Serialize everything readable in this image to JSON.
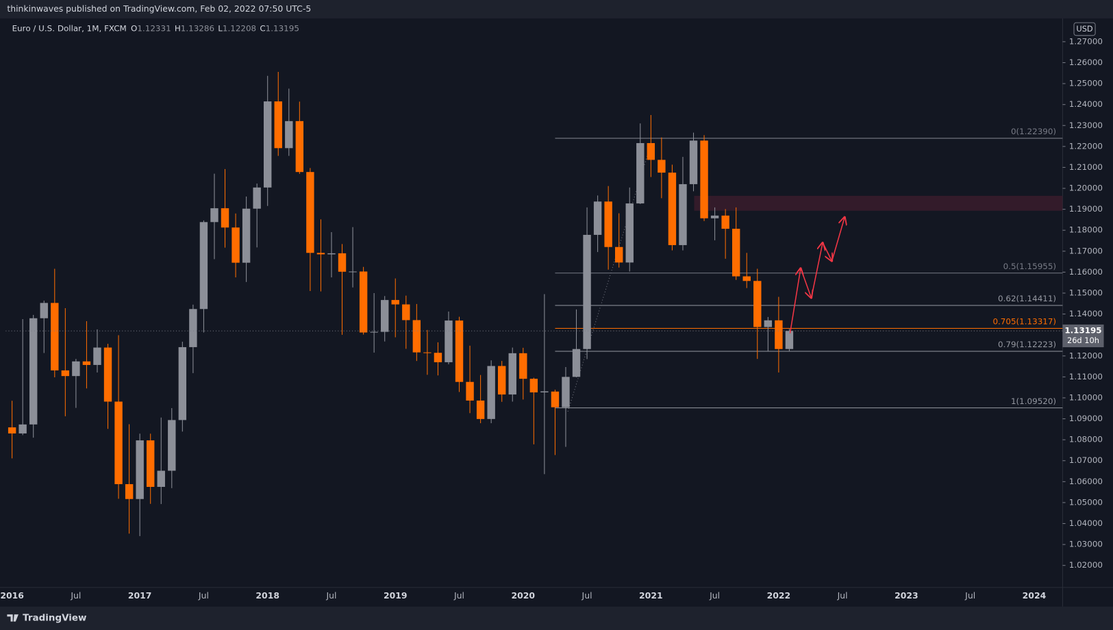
{
  "header": {
    "text": "thinkinwaves published on TradingView.com, Feb 02, 2022 07:50 UTC-5"
  },
  "footer": {
    "logo": "TradingView"
  },
  "chart_data": {
    "type": "candlestick",
    "title": "Euro / U.S. Dollar, 1M, FXCM",
    "ohlc_labels": [
      "O",
      "H",
      "L",
      "C"
    ],
    "currency": "USD",
    "countdown": "26d 10h",
    "up_color": "#8c8f98",
    "down_color": "#ff6d00",
    "x": [
      "2016-01",
      "2016-02",
      "2016-03",
      "2016-04",
      "2016-05",
      "2016-06",
      "2016-07",
      "2016-08",
      "2016-09",
      "2016-10",
      "2016-11",
      "2016-12",
      "2017-01",
      "2017-02",
      "2017-03",
      "2017-04",
      "2017-05",
      "2017-06",
      "2017-07",
      "2017-08",
      "2017-09",
      "2017-10",
      "2017-11",
      "2017-12",
      "2018-01",
      "2018-02",
      "2018-03",
      "2018-04",
      "2018-05",
      "2018-06",
      "2018-07",
      "2018-08",
      "2018-09",
      "2018-10",
      "2018-11",
      "2018-12",
      "2019-01",
      "2019-02",
      "2019-03",
      "2019-04",
      "2019-05",
      "2019-06",
      "2019-07",
      "2019-08",
      "2019-09",
      "2019-10",
      "2019-11",
      "2019-12",
      "2020-01",
      "2020-02",
      "2020-03",
      "2020-04",
      "2020-05",
      "2020-06",
      "2020-07",
      "2020-08",
      "2020-09",
      "2020-10",
      "2020-11",
      "2020-12",
      "2021-01",
      "2021-02",
      "2021-03",
      "2021-04",
      "2021-05",
      "2021-06",
      "2021-07",
      "2021-08",
      "2021-09",
      "2021-10",
      "2021-11",
      "2021-12",
      "2022-01",
      "2022-02"
    ],
    "open": [
      1.0859,
      1.083,
      1.0873,
      1.138,
      1.1453,
      1.1131,
      1.1104,
      1.1174,
      1.1157,
      1.124,
      1.0982,
      1.0588,
      1.0517,
      1.0797,
      1.0575,
      1.0652,
      1.0894,
      1.1242,
      1.1424,
      1.1839,
      1.1905,
      1.1813,
      1.1645,
      1.1903,
      1.2004,
      1.2415,
      1.2192,
      1.2321,
      1.2078,
      1.1692,
      1.1685,
      1.169,
      1.1602,
      1.1603,
      1.1312,
      1.1315,
      1.1467,
      1.1446,
      1.1371,
      1.1217,
      1.1215,
      1.117,
      1.1369,
      1.1076,
      1.0987,
      1.0899,
      1.1152,
      1.1016,
      1.1213,
      1.1091,
      1.1026,
      1.103,
      1.0955,
      1.11,
      1.1233,
      1.1778,
      1.1937,
      1.172,
      1.1646,
      1.1928,
      1.2216,
      1.2136,
      1.2075,
      1.1729,
      1.202,
      1.2228,
      1.1857,
      1.187,
      1.1807,
      1.158,
      1.1558,
      1.1338,
      1.137,
      1.12331
    ],
    "high": [
      1.0986,
      1.1376,
      1.1396,
      1.1464,
      1.1616,
      1.1428,
      1.1186,
      1.1366,
      1.1327,
      1.1258,
      1.1299,
      1.0874,
      1.0829,
      1.0829,
      1.0906,
      1.0951,
      1.1268,
      1.1445,
      1.1847,
      1.207,
      1.2092,
      1.188,
      1.1961,
      1.2023,
      1.2537,
      1.2556,
      1.2476,
      1.2414,
      1.2097,
      1.1852,
      1.1791,
      1.1734,
      1.1815,
      1.1625,
      1.15,
      1.1486,
      1.157,
      1.1488,
      1.1448,
      1.1324,
      1.1265,
      1.1412,
      1.1387,
      1.1249,
      1.1109,
      1.1179,
      1.1176,
      1.124,
      1.1239,
      1.1096,
      1.1495,
      1.1039,
      1.1147,
      1.1422,
      1.1909,
      1.1966,
      1.2011,
      1.1881,
      1.2004,
      1.231,
      1.235,
      1.2243,
      1.2113,
      1.215,
      1.2266,
      1.2254,
      1.1909,
      1.1901,
      1.1909,
      1.1692,
      1.1616,
      1.1386,
      1.1482,
      1.13286
    ],
    "low": [
      1.0711,
      1.0822,
      1.081,
      1.1214,
      1.1098,
      1.0912,
      1.0952,
      1.1045,
      1.1121,
      1.0852,
      1.0518,
      1.0352,
      1.034,
      1.0494,
      1.0493,
      1.0569,
      1.0839,
      1.1118,
      1.1312,
      1.1662,
      1.1717,
      1.1575,
      1.1553,
      1.1718,
      1.1916,
      1.2155,
      1.2155,
      1.2069,
      1.151,
      1.1508,
      1.1575,
      1.1301,
      1.1527,
      1.1302,
      1.1216,
      1.1269,
      1.1289,
      1.1234,
      1.1176,
      1.111,
      1.1107,
      1.116,
      1.1028,
      1.0927,
      1.0879,
      1.0879,
      1.0981,
      1.0982,
      1.0992,
      1.0778,
      1.0636,
      1.0727,
      1.0766,
      1.1098,
      1.1185,
      1.1696,
      1.1612,
      1.1622,
      1.1603,
      1.1925,
      1.2054,
      1.1953,
      1.1704,
      1.1704,
      1.1986,
      1.1844,
      1.1752,
      1.1664,
      1.1563,
      1.1524,
      1.1186,
      1.1221,
      1.1121,
      1.12208
    ],
    "close": [
      1.083,
      1.0873,
      1.138,
      1.1453,
      1.1131,
      1.1104,
      1.1174,
      1.1157,
      1.124,
      1.0982,
      1.0588,
      1.0517,
      1.0797,
      1.0575,
      1.0652,
      1.0894,
      1.1242,
      1.1424,
      1.1839,
      1.1905,
      1.1813,
      1.1645,
      1.1903,
      1.2004,
      1.2415,
      1.2192,
      1.2321,
      1.2078,
      1.1692,
      1.1685,
      1.169,
      1.1602,
      1.1603,
      1.1312,
      1.1315,
      1.1467,
      1.1446,
      1.1371,
      1.1217,
      1.1215,
      1.117,
      1.1369,
      1.1076,
      1.0987,
      1.0899,
      1.1152,
      1.1016,
      1.1213,
      1.1091,
      1.1026,
      1.1031,
      1.0955,
      1.11,
      1.1233,
      1.1778,
      1.1937,
      1.172,
      1.1646,
      1.1928,
      1.2216,
      1.2136,
      1.2075,
      1.1729,
      1.202,
      1.2228,
      1.1857,
      1.187,
      1.1807,
      1.158,
      1.1558,
      1.1338,
      1.137,
      1.1233,
      1.13195
    ],
    "ylim": [
      1.0095,
      1.2811
    ],
    "yticks": [
      {
        "value": 1.02,
        "label": "1.02000"
      },
      {
        "value": 1.03,
        "label": "1.03000"
      },
      {
        "value": 1.04,
        "label": "1.04000"
      },
      {
        "value": 1.05,
        "label": "1.05000"
      },
      {
        "value": 1.06,
        "label": "1.06000"
      },
      {
        "value": 1.07,
        "label": "1.07000"
      },
      {
        "value": 1.08,
        "label": "1.08000"
      },
      {
        "value": 1.09,
        "label": "1.09000"
      },
      {
        "value": 1.1,
        "label": "1.10000"
      },
      {
        "value": 1.11,
        "label": "1.11000"
      },
      {
        "value": 1.12,
        "label": "1.12000"
      },
      {
        "value": 1.13,
        "label": "1.13000"
      },
      {
        "value": 1.14,
        "label": "1.14000"
      },
      {
        "value": 1.15,
        "label": "1.15000"
      },
      {
        "value": 1.16,
        "label": "1.16000"
      },
      {
        "value": 1.17,
        "label": "1.17000"
      },
      {
        "value": 1.18,
        "label": "1.18000"
      },
      {
        "value": 1.19,
        "label": "1.19000"
      },
      {
        "value": 1.2,
        "label": "1.20000"
      },
      {
        "value": 1.21,
        "label": "1.21000"
      },
      {
        "value": 1.22,
        "label": "1.22000"
      },
      {
        "value": 1.23,
        "label": "1.23000"
      },
      {
        "value": 1.24,
        "label": "1.24000"
      },
      {
        "value": 1.25,
        "label": "1.25000"
      },
      {
        "value": 1.26,
        "label": "1.26000"
      },
      {
        "value": 1.27,
        "label": "1.27000"
      }
    ],
    "xticks": [
      {
        "value": "2016-01",
        "label": "2016"
      },
      {
        "value": "2016-07",
        "label": "Jul"
      },
      {
        "value": "2017-01",
        "label": "2017"
      },
      {
        "value": "2017-07",
        "label": "Jul"
      },
      {
        "value": "2018-01",
        "label": "2018"
      },
      {
        "value": "2018-07",
        "label": "Jul"
      },
      {
        "value": "2019-01",
        "label": "2019"
      },
      {
        "value": "2019-07",
        "label": "Jul"
      },
      {
        "value": "2020-01",
        "label": "2020"
      },
      {
        "value": "2020-07",
        "label": "Jul"
      },
      {
        "value": "2021-01",
        "label": "2021"
      },
      {
        "value": "2021-07",
        "label": "Jul"
      },
      {
        "value": "2022-01",
        "label": "2022"
      },
      {
        "value": "2022-07",
        "label": "Jul"
      },
      {
        "value": "2023-01",
        "label": "2023"
      },
      {
        "value": "2023-07",
        "label": "Jul"
      },
      {
        "value": "2024-01",
        "label": "2024"
      }
    ],
    "fib_start": "2020-04",
    "fib_levels": [
      {
        "value": 1.2239,
        "label": "0(1.22390)",
        "color": "#787b86"
      },
      {
        "value": 1.15955,
        "label": "0.5(1.15955)",
        "color": "#787b86"
      },
      {
        "value": 1.14411,
        "label": "0.62(1.14411)",
        "color": "#9598a1"
      },
      {
        "value": 1.13317,
        "label": "0.705(1.13317)",
        "color": "#ff6d00"
      },
      {
        "value": 1.12223,
        "label": "0.79(1.12223)",
        "color": "#9598a1"
      },
      {
        "value": 1.0952,
        "label": "1(1.09520)",
        "color": "#9598a1"
      }
    ]
  }
}
